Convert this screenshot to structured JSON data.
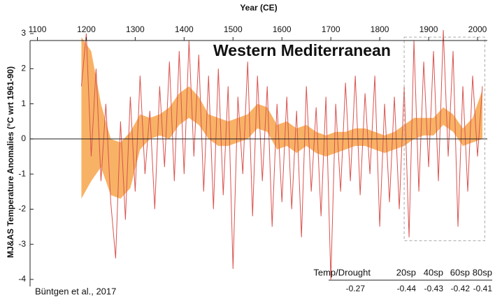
{
  "chart_data": {
    "type": "line",
    "title": "Western Mediterranean",
    "x_label": "Year (CE)",
    "y_label": "MJ&AS Temperature Anomalies (°C wrt 1961-90)",
    "source": "Büntgen et al., 2017",
    "xlim": [
      1085,
      2020
    ],
    "ylim": [
      -4.2,
      3.2
    ],
    "xticks": [
      1100,
      1200,
      1300,
      1400,
      1500,
      1600,
      1700,
      1800,
      1900,
      2000
    ],
    "yticks": [
      -4,
      -3,
      -2,
      -1,
      0,
      1,
      2,
      3
    ],
    "zero_line": true,
    "highlight_box": {
      "x": [
        1850,
        2015
      ],
      "y": [
        -2.9,
        2.9
      ]
    },
    "series": [
      {
        "name": "Temp",
        "color": "#d9534f",
        "x": [
          1190,
          1200,
          1210,
          1220,
          1230,
          1240,
          1250,
          1260,
          1270,
          1280,
          1290,
          1300,
          1310,
          1320,
          1330,
          1340,
          1350,
          1360,
          1370,
          1380,
          1390,
          1400,
          1410,
          1420,
          1430,
          1440,
          1450,
          1460,
          1470,
          1480,
          1490,
          1500,
          1510,
          1520,
          1530,
          1540,
          1550,
          1560,
          1570,
          1580,
          1590,
          1600,
          1610,
          1620,
          1630,
          1640,
          1650,
          1660,
          1670,
          1680,
          1690,
          1700,
          1710,
          1720,
          1730,
          1740,
          1750,
          1760,
          1770,
          1780,
          1790,
          1800,
          1810,
          1820,
          1830,
          1840,
          1850,
          1860,
          1870,
          1880,
          1890,
          1900,
          1910,
          1920,
          1930,
          1940,
          1950,
          1960,
          1970,
          1980,
          1990,
          2000,
          2010
        ],
        "values": [
          1.5,
          3.0,
          -0.5,
          2.0,
          -1.2,
          1.0,
          -1.8,
          -3.4,
          0.5,
          -2.3,
          1.2,
          -1.5,
          1.8,
          -1.0,
          0.8,
          -2.0,
          1.5,
          -0.8,
          2.2,
          -1.2,
          2.5,
          -1.0,
          2.8,
          -0.5,
          2.4,
          -1.5,
          1.8,
          -2.0,
          2.0,
          -1.6,
          1.5,
          -3.7,
          1.2,
          -1.0,
          2.2,
          -2.2,
          1.8,
          -1.2,
          1.5,
          -2.5,
          1.0,
          -1.8,
          1.2,
          -2.0,
          0.8,
          -2.8,
          1.5,
          -1.5,
          0.9,
          -2.2,
          1.2,
          -4.0,
          1.0,
          -1.5,
          1.6,
          -1.2,
          1.8,
          -1.6,
          1.3,
          -1.0,
          1.8,
          -2.5,
          1.0,
          -1.8,
          1.2,
          -2.0,
          1.5,
          -2.8,
          2.8,
          -1.5,
          2.2,
          -0.8,
          2.5,
          -1.2,
          3.1,
          -0.5,
          2.5,
          -2.5,
          1.5,
          -1.5,
          1.8,
          -0.5,
          1.5
        ]
      }
    ],
    "band": {
      "color": "#f7a54a",
      "x": [
        1190,
        1210,
        1230,
        1250,
        1270,
        1290,
        1310,
        1330,
        1350,
        1370,
        1390,
        1410,
        1430,
        1450,
        1470,
        1490,
        1510,
        1530,
        1550,
        1570,
        1590,
        1610,
        1630,
        1650,
        1670,
        1690,
        1710,
        1730,
        1750,
        1770,
        1790,
        1810,
        1830,
        1850,
        1870,
        1890,
        1910,
        1930,
        1950,
        1970,
        1990,
        2010
      ],
      "upper": [
        2.9,
        2.5,
        1.0,
        0.0,
        -0.1,
        0.2,
        0.7,
        0.6,
        0.7,
        0.9,
        1.3,
        1.5,
        1.2,
        0.7,
        0.6,
        0.5,
        0.6,
        0.7,
        1.0,
        0.9,
        0.4,
        0.5,
        0.3,
        0.4,
        0.2,
        0.1,
        0.2,
        0.2,
        0.3,
        0.3,
        0.2,
        0.1,
        0.2,
        0.4,
        0.6,
        0.6,
        0.6,
        0.9,
        0.7,
        0.3,
        0.6,
        1.4
      ],
      "lower": [
        -1.7,
        -1.2,
        -0.8,
        -1.6,
        -1.7,
        -1.4,
        -0.3,
        0.0,
        0.1,
        0.0,
        0.4,
        0.6,
        0.4,
        0.0,
        -0.2,
        -0.2,
        -0.1,
        0.0,
        0.3,
        0.2,
        -0.3,
        -0.2,
        -0.4,
        -0.2,
        -0.4,
        -0.5,
        -0.4,
        -0.3,
        -0.2,
        -0.2,
        -0.3,
        -0.4,
        -0.3,
        -0.2,
        0.0,
        0.1,
        0.1,
        0.4,
        0.2,
        -0.2,
        -0.1,
        0.0
      ]
    },
    "correlation_table": {
      "headers": [
        {
          "text": "Temp/Drought",
          "color": "#8b1a1a"
        },
        {
          "text": "20sp",
          "color": "#111111"
        },
        {
          "text": "40sp",
          "color": "#111111"
        },
        {
          "text": "60sp",
          "color": "#111111"
        },
        {
          "text": "80sp",
          "color": "#33cc33"
        }
      ],
      "values": [
        -0.27,
        -0.44,
        -0.43,
        -0.42,
        -0.41
      ]
    }
  }
}
